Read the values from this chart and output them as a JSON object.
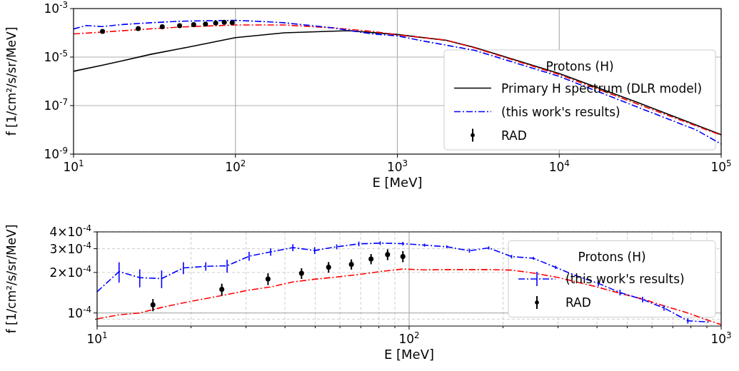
{
  "chart_data": [
    {
      "type": "line",
      "log": "xy",
      "grid": true,
      "legend": "lower right",
      "legend_title": "Protons (H)",
      "xlabel": "E [MeV]",
      "ylabel": "f [1/cm²/s/sr/MeV]",
      "xlim": [
        10,
        100000
      ],
      "ylim": [
        1e-09,
        0.001
      ],
      "xticks": [
        {
          "value": 10,
          "label": "10$^{1}$"
        },
        {
          "value": 100,
          "label": "10$^{2}$"
        },
        {
          "value": 1000,
          "label": "10$^{3}$"
        },
        {
          "value": 10000,
          "label": "10$^{4}$"
        },
        {
          "value": 100000,
          "label": "10$^{5}$"
        }
      ],
      "yticks": [
        {
          "value": 1e-09,
          "label": "10$^{-9}$"
        },
        {
          "value": 1e-07,
          "label": "10$^{-7}$"
        },
        {
          "value": 1e-05,
          "label": "10$^{-5}$"
        },
        {
          "value": 0.001,
          "label": "10$^{-3}$"
        }
      ],
      "series": [
        {
          "name": "Primary H spectrum (DLR model)",
          "color": "#000000",
          "line_style": "solid",
          "x": [
            10,
            15,
            20,
            30,
            50,
            100,
            200,
            500,
            1000,
            2000,
            3000,
            10000,
            30000,
            100000
          ],
          "values": [
            2.6e-06,
            4.6e-06,
            7e-06,
            1.3e-05,
            2.5e-05,
            6.3e-05,
            0.0001,
            0.000122,
            8.5e-05,
            4.9e-05,
            2.5e-05,
            2.1e-06,
            1.4e-07,
            6.3e-09
          ]
        },
        {
          "color": "#ff0000",
          "line_style": "dashed",
          "x": [
            10,
            15,
            25,
            35,
            50,
            100,
            200,
            400,
            700,
            1000,
            2000,
            3000,
            10000,
            30000,
            100000
          ],
          "values": [
            9e-05,
            0.000107,
            0.000135,
            0.000155,
            0.000178,
            0.00021,
            0.00021,
            0.00016,
            0.000115,
            8.2e-05,
            5e-05,
            2.4e-05,
            1.9e-06,
            1.2e-07,
            6e-09
          ]
        },
        {
          "name": "(this work's results)",
          "color": "#0000ff",
          "line_style": "dashed",
          "x": [
            10,
            12,
            15,
            20,
            30,
            45,
            60,
            100,
            150,
            200,
            400,
            700,
            1000,
            1500,
            3000,
            10000,
            30000,
            70000,
            100000
          ],
          "values": [
            0.000144,
            0.0002,
            0.00018,
            0.00022,
            0.00026,
            0.0003,
            0.00031,
            0.000327,
            0.00029,
            0.00026,
            0.00016,
            9e-05,
            7.5e-05,
            4.4e-05,
            1.9e-05,
            1.6e-06,
            9e-08,
            1e-08,
            2.6e-09
          ]
        },
        {
          "name": "RAD",
          "type": "scatter",
          "marker": "circle",
          "color": "#000000",
          "x": [
            15.1,
            25.1,
            35.3,
            45.2,
            55.2,
            65.3,
            75.5,
            85.3,
            95.5
          ],
          "values": [
            0.000115,
            0.00015,
            0.000179,
            0.000197,
            0.000219,
            0.00023,
            0.000252,
            0.000272,
            0.000263
          ],
          "errors": [
            1.2e-05,
            1.5e-05,
            1.8e-05,
            1.8e-05,
            2e-05,
            2e-05,
            2.2e-05,
            2.5e-05,
            2.5e-05
          ]
        }
      ]
    },
    {
      "type": "line",
      "log": "xy",
      "grid": true,
      "legend": "right",
      "legend_title": "Protons (H)",
      "xlabel": "E [MeV]",
      "ylabel": "f [1/cm²/s/sr/MeV]",
      "xlim": [
        10,
        1000
      ],
      "ylim": [
        8e-05,
        0.0004
      ],
      "xticks": [
        {
          "value": 10,
          "label": "10$^{1}$"
        },
        {
          "value": 20,
          "label": null
        },
        {
          "value": 30,
          "label": null
        },
        {
          "value": 40,
          "label": null
        },
        {
          "value": 50,
          "label": null
        },
        {
          "value": 60,
          "label": null
        },
        {
          "value": 70,
          "label": null
        },
        {
          "value": 80,
          "label": null
        },
        {
          "value": 90,
          "label": null
        },
        {
          "value": 100,
          "label": "10$^{2}$"
        },
        {
          "value": 200,
          "label": null
        },
        {
          "value": 300,
          "label": null
        },
        {
          "value": 400,
          "label": null
        },
        {
          "value": 500,
          "label": null
        },
        {
          "value": 600,
          "label": null
        },
        {
          "value": 700,
          "label": null
        },
        {
          "value": 800,
          "label": null
        },
        {
          "value": 900,
          "label": null
        },
        {
          "value": 1000,
          "label": "10$^{3}$"
        }
      ],
      "yticks": [
        {
          "value": 9e-05,
          "label": null
        },
        {
          "value": 0.0001,
          "label": "10$^{-4}$"
        },
        {
          "value": 0.0002,
          "label": "2×10$^{-4}$"
        },
        {
          "value": 0.0003,
          "label": "3×10$^{-4}$"
        },
        {
          "value": 0.0004,
          "label": "4×10$^{-4}$"
        }
      ],
      "series": [
        {
          "color": "#ff0000",
          "line_style": "dashed",
          "x": [
            10,
            11.76,
            13.7,
            16.1,
            18.9,
            22.3,
            26.1,
            30.7,
            36,
            42.4,
            49.8,
            58.6,
            69,
            80.8,
            95.5,
            112,
            132,
            156,
            180,
            213,
            250,
            295,
            345,
            404,
            474,
            560,
            656,
            782,
            912,
            1000
          ],
          "values": [
            9.04e-05,
            9.7e-05,
            0.0001,
            0.00011,
            0.000119,
            0.000128,
            0.000137,
            0.000148,
            0.000156,
            0.00017,
            0.000178,
            0.000185,
            0.000193,
            0.000203,
            0.000212,
            0.000209,
            0.00021,
            0.00021,
            0.00021,
            0.000208,
            0.000198,
            0.000185,
            0.00017,
            0.000155,
            0.00014,
            0.000127,
            0.000113,
            0.0001,
            8.8e-05,
            8.2e-05
          ]
        },
        {
          "name": "(this work's results)",
          "color": "#0000ff",
          "line_style": "dashed",
          "x": [
            10,
            11.76,
            13.7,
            16.1,
            18.9,
            22.3,
            26.1,
            30.7,
            36,
            42.4,
            49.8,
            58.6,
            69,
            80.8,
            95.5,
            112,
            132,
            156,
            180,
            213,
            250,
            295,
            345,
            404,
            474,
            560,
            656,
            782,
            912
          ],
          "values": [
            0.000144,
            0.000203,
            0.000183,
            0.00018,
            0.000216,
            0.000222,
            0.000224,
            0.000264,
            0.000284,
            0.000306,
            0.000291,
            0.00031,
            0.000326,
            0.00033,
            0.000327,
            0.000319,
            0.00031,
            0.00029,
            0.000304,
            0.000262,
            0.000255,
            0.000218,
            0.000188,
            0.000166,
            0.000142,
            0.000126,
            0.000109,
            8.75e-05,
            8.57e-05
          ],
          "errors": [
            null,
            3.5e-05,
            2.8e-05,
            2.7e-05,
            2.2e-05,
            1.6e-05,
            2.5e-05,
            2e-05,
            1.8e-05,
            1.8e-05,
            1.7e-05,
            1.3e-05,
            1.3e-05,
            1e-05,
            1e-05,
            8e-06,
            8e-06,
            1e-05,
            8e-06,
            8e-06,
            6e-06,
            6e-06,
            null,
            8e-06,
            7e-06,
            6e-06,
            5e-06,
            4e-06,
            null
          ]
        },
        {
          "name": "RAD",
          "type": "scatter",
          "marker": "circle",
          "color": "#000000",
          "x": [
            15.1,
            25.1,
            35.3,
            45.2,
            55.2,
            65.3,
            75.5,
            85.3,
            95.5
          ],
          "values": [
            0.000115,
            0.00015,
            0.000179,
            0.000197,
            0.000219,
            0.00023,
            0.000252,
            0.000272,
            0.000263
          ],
          "errors": [
            1.2e-05,
            1.5e-05,
            1.8e-05,
            1.8e-05,
            2e-05,
            2e-05,
            2.2e-05,
            2.5e-05,
            2.5e-05
          ]
        }
      ]
    }
  ]
}
